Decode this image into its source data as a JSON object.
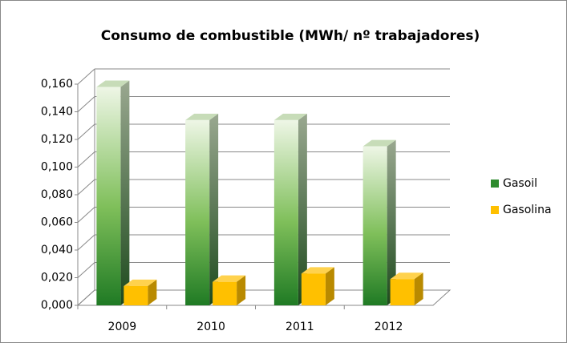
{
  "chart_data": {
    "type": "bar3d",
    "title": "Consumo de combustible (MWh/ nº trabajadores)",
    "categories": [
      "2009",
      "2010",
      "2011",
      "2012"
    ],
    "series": [
      {
        "name": "Gasoil",
        "color": "#2e8b2e",
        "values": [
          0.158,
          0.134,
          0.134,
          0.115
        ]
      },
      {
        "name": "Gasolina",
        "color": "#ffc000",
        "values": [
          0.014,
          0.017,
          0.023,
          0.019
        ]
      }
    ],
    "ylim": [
      0,
      0.16
    ],
    "yticks": [
      {
        "value": 0,
        "label": "0,000"
      },
      {
        "value": 0.02,
        "label": "0,020"
      },
      {
        "value": 0.04,
        "label": "0,040"
      },
      {
        "value": 0.06,
        "label": "0,060"
      },
      {
        "value": 0.08,
        "label": "0,080"
      },
      {
        "value": 0.1,
        "label": "0,100"
      },
      {
        "value": 0.12,
        "label": "0,120"
      },
      {
        "value": 0.14,
        "label": "0,140"
      },
      {
        "value": 0.16,
        "label": "0,160"
      }
    ],
    "grid": true,
    "legend": "right"
  }
}
